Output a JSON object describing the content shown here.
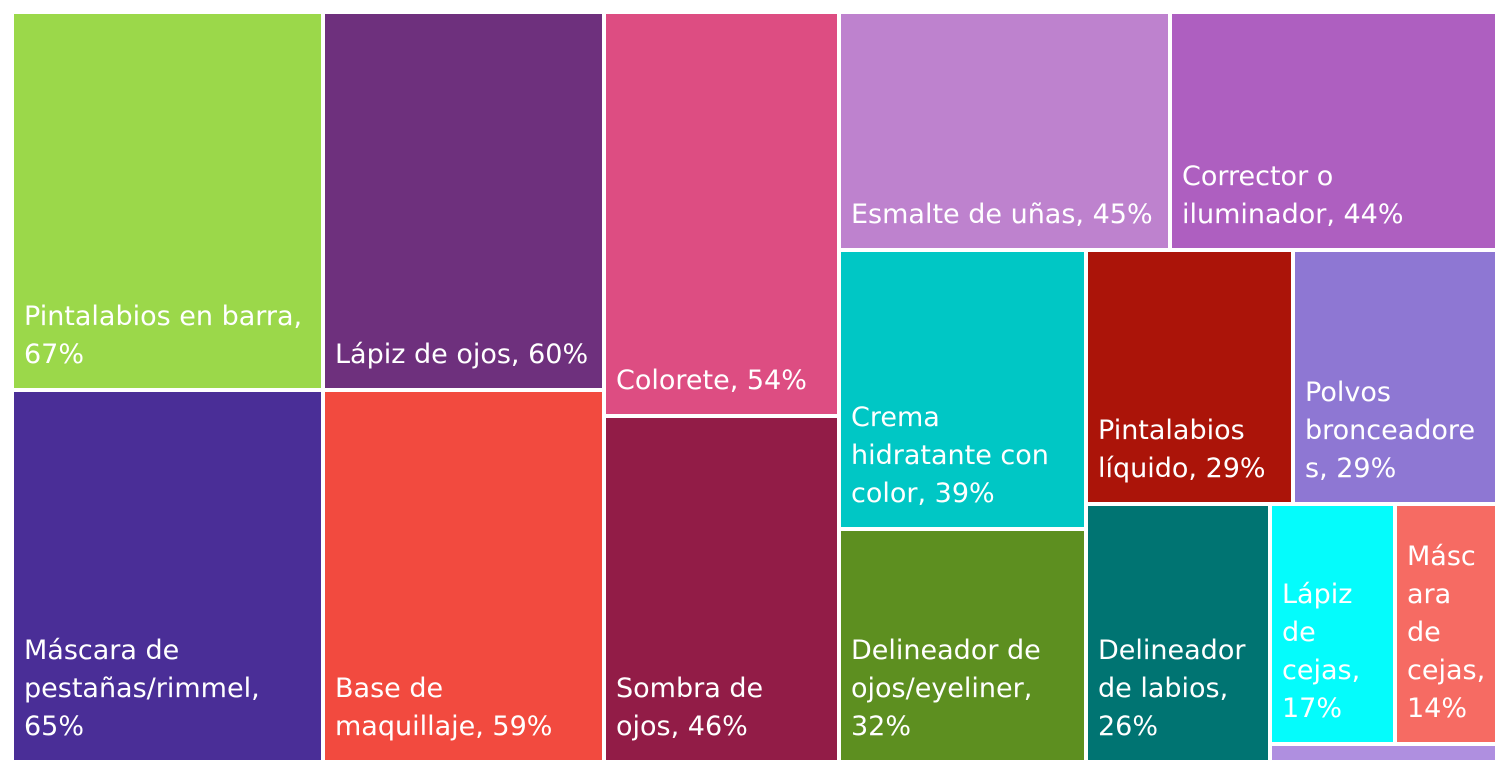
{
  "chart_data": {
    "type": "treemap",
    "title": "",
    "items": [
      {
        "label": "Pintalabios en barra, 67%",
        "name": "Pintalabios en barra",
        "value": 67,
        "color": "#9BD84A"
      },
      {
        "label": "Máscara de pestañas/rimmel, 65%",
        "name": "Máscara de pestañas/rimmel",
        "value": 65,
        "color": "#4A2E97"
      },
      {
        "label": "Lápiz de ojos, 60%",
        "name": "Lápiz de ojos",
        "value": 60,
        "color": "#6E307D"
      },
      {
        "label": "Base de maquillaje, 59%",
        "name": "Base de maquillaje",
        "value": 59,
        "color": "#F24A3F"
      },
      {
        "label": "Colorete, 54%",
        "name": "Colorete",
        "value": 54,
        "color": "#DD4D82"
      },
      {
        "label": "Sombra de ojos, 46%",
        "name": "Sombra de ojos",
        "value": 46,
        "color": "#921C47"
      },
      {
        "label": "Esmalte de uñas, 45%",
        "name": "Esmalte de uñas",
        "value": 45,
        "color": "#BE82CE"
      },
      {
        "label": "Corrector o iluminador, 44%",
        "name": "Corrector o iluminador",
        "value": 44,
        "color": "#AE5FC0"
      },
      {
        "label": "Crema hidratante con color, 39%",
        "name": "Crema hidratante con color",
        "value": 39,
        "color": "#00C7C5"
      },
      {
        "label": "Delineador de ojos/eyeliner, 32%",
        "name": "Delineador de ojos/eyeliner",
        "value": 32,
        "color": "#5D8F20"
      },
      {
        "label": "Pintalabios líquido, 29%",
        "name": "Pintalabios líquido",
        "value": 29,
        "color": "#AB1409"
      },
      {
        "label": "Polvos bronceadores, 29%",
        "name": "Polvos bronceadores",
        "value": 29,
        "color": "#8E77D3"
      },
      {
        "label": "Delineador de labios, 26%",
        "name": "Delineador de labios",
        "value": 26,
        "color": "#007472"
      },
      {
        "label": "Lápiz de cejas, 17%",
        "name": "Lápiz de cejas",
        "value": 17,
        "color": "#04FCFC"
      },
      {
        "label": "Máscara de cejas, 14%",
        "name": "Máscara de cejas",
        "value": 14,
        "color": "#F66B63"
      },
      {
        "label": "",
        "name": "",
        "value": 1,
        "color": "#AF8FE0"
      }
    ]
  }
}
